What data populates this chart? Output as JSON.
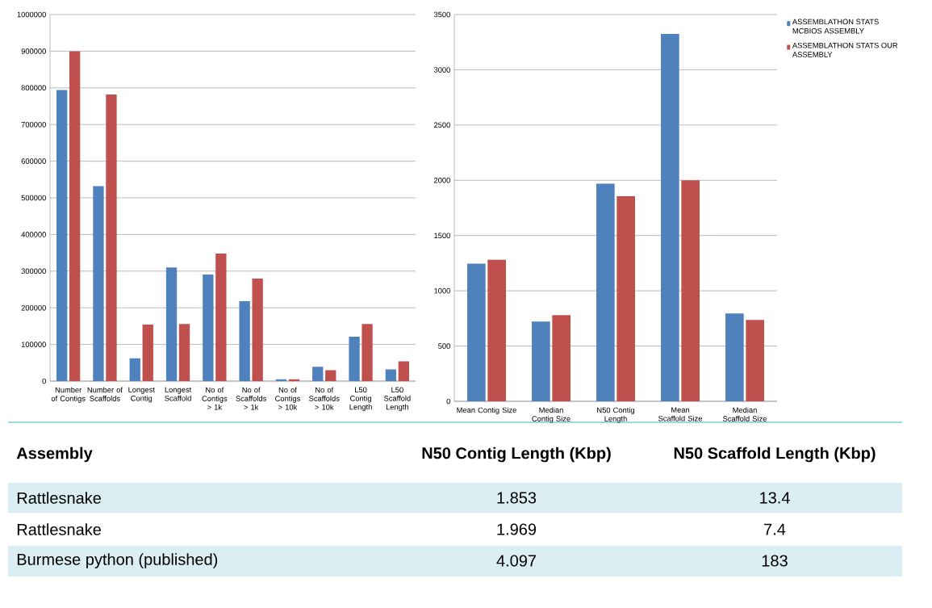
{
  "chart_data": [
    {
      "type": "bar",
      "categories": [
        "Number of Contigs",
        "Number of Scaffolds",
        "Longest Contig",
        "Longest Scaffold",
        "No of Contigs > 1k",
        "No of Scaffolds > 1k",
        "No of Contigs > 10k",
        "No of Scaffolds > 10k",
        "L50 Contig Length",
        "L50 Scaffold Length"
      ],
      "series": [
        {
          "color": "#4f81bd",
          "values": [
            794000,
            532000,
            62000,
            310000,
            291000,
            218000,
            5000,
            39000,
            121000,
            32000
          ]
        },
        {
          "color": "#c0504d",
          "values": [
            900000,
            782000,
            154000,
            156000,
            348000,
            280000,
            5000,
            30000,
            156000,
            54000
          ]
        }
      ],
      "ylim": [
        0,
        1000000
      ],
      "yticks": [
        0,
        100000,
        200000,
        300000,
        400000,
        500000,
        600000,
        700000,
        800000,
        900000,
        1000000
      ],
      "grid": "y"
    },
    {
      "type": "bar",
      "categories": [
        "Mean Contig Size",
        "Median Contig Size",
        "N50 Contig Length",
        "Mean Scaffold Size",
        "Median Scaffold Size"
      ],
      "series": [
        {
          "name": "ASSEMBLATHON STATS MCBIOS ASSEMBLY",
          "color": "#4f81bd",
          "values": [
            1245,
            722,
            1970,
            3325,
            794
          ]
        },
        {
          "name": "ASSEMBLATHON STATS OUR ASSEMBLY",
          "color": "#c0504d",
          "values": [
            1280,
            780,
            1855,
            2000,
            736
          ]
        }
      ],
      "ylim": [
        0,
        3500
      ],
      "yticks": [
        0,
        500,
        1000,
        1500,
        2000,
        2500,
        3000,
        3500
      ],
      "grid": "y",
      "legend": "right"
    },
    {
      "type": "other",
      "categories": [
        "Assembly",
        "N50 Contig Length (Kbp)",
        "N50 Scaffold Length (Kbp)"
      ],
      "annotations": [
        "Rattlesnake",
        "1.853",
        "13.4",
        "Rattlesnake",
        "1.969",
        "7.4",
        "Burmese python (published)",
        "4.097",
        "183"
      ]
    }
  ]
}
